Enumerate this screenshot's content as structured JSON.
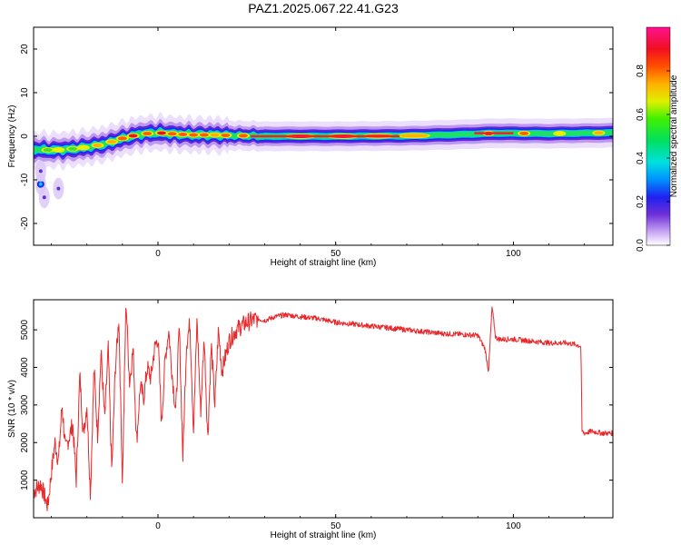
{
  "figure_title": "PAZ1.2025.067.22.41.G23",
  "chart_data": [
    {
      "type": "heatmap",
      "title": "PAZ1.2025.067.22.41.G23",
      "xlabel": "Height of straight line (km)",
      "ylabel": "Frequency (Hz)",
      "xlim": [
        -35,
        128
      ],
      "ylim": [
        -25,
        25
      ],
      "x_ticks": [
        0,
        50,
        100
      ],
      "y_ticks": [
        -20,
        -10,
        0,
        10,
        20
      ],
      "colorbar": {
        "label": "Normalized spectral amplitude",
        "range": [
          0,
          1
        ],
        "ticks": [
          0.0,
          0.2,
          0.4,
          0.6,
          0.8
        ]
      },
      "ridge": [
        {
          "x": -35,
          "y": -3.0
        },
        {
          "x": -30,
          "y": -3.2
        },
        {
          "x": -25,
          "y": -3.0
        },
        {
          "x": -20,
          "y": -2.5
        },
        {
          "x": -15,
          "y": -1.8
        },
        {
          "x": -10,
          "y": -0.5
        },
        {
          "x": -5,
          "y": 0.5
        },
        {
          "x": 0,
          "y": 0.8
        },
        {
          "x": 5,
          "y": 0.5
        },
        {
          "x": 10,
          "y": 0.3
        },
        {
          "x": 15,
          "y": 0.3
        },
        {
          "x": 20,
          "y": 0.2
        },
        {
          "x": 30,
          "y": 0.0
        },
        {
          "x": 50,
          "y": 0.0
        },
        {
          "x": 70,
          "y": 0.1
        },
        {
          "x": 85,
          "y": 0.4
        },
        {
          "x": 95,
          "y": 0.7
        },
        {
          "x": 110,
          "y": 0.6
        },
        {
          "x": 128,
          "y": 0.8
        }
      ],
      "outliers": [
        {
          "x": -33,
          "y": -11,
          "amp": 0.3
        },
        {
          "x": -32,
          "y": -14,
          "amp": 0.15
        },
        {
          "x": -28,
          "y": -12,
          "amp": 0.1
        },
        {
          "x": -33,
          "y": -8,
          "amp": 0.1
        }
      ]
    },
    {
      "type": "line",
      "xlabel": "Height of straight line (km)",
      "ylabel": "SNR (10 * v/v)",
      "xlim": [
        -35,
        128
      ],
      "ylim": [
        0,
        5800
      ],
      "x_ticks": [
        0,
        50,
        100
      ],
      "y_ticks": [
        1000,
        2000,
        3000,
        4000,
        5000
      ],
      "color": "#e8282a",
      "x": [
        -35,
        -33,
        -31,
        -30,
        -29,
        -28,
        -27,
        -26,
        -24,
        -23,
        -22,
        -21,
        -20,
        -19,
        -18,
        -17,
        -16,
        -15,
        -14,
        -13,
        -12,
        -11,
        -10,
        -9,
        -8,
        -7,
        -6,
        -5,
        -4,
        -3,
        -2,
        -1,
        0,
        1,
        2,
        3,
        4,
        5,
        6,
        7,
        8,
        9,
        10,
        11,
        12,
        13,
        14,
        15,
        16,
        17,
        18,
        20,
        22,
        25,
        28,
        30,
        33,
        36,
        40,
        45,
        50,
        55,
        60,
        65,
        70,
        75,
        80,
        85,
        90,
        92,
        93,
        94,
        95,
        96,
        100,
        105,
        110,
        115,
        118,
        119,
        119.3,
        120,
        122,
        125,
        128
      ],
      "y": [
        700,
        900,
        300,
        1200,
        2000,
        1500,
        3000,
        1800,
        2500,
        1000,
        3800,
        2200,
        3000,
        600,
        4000,
        2200,
        4400,
        2600,
        4500,
        1200,
        4000,
        5300,
        900,
        5800,
        3600,
        4500,
        2000,
        3500,
        3200,
        4000,
        3700,
        4500,
        4800,
        2500,
        4200,
        5000,
        3800,
        2800,
        5100,
        1600,
        4600,
        5200,
        2300,
        5300,
        2800,
        4800,
        2100,
        4600,
        3000,
        5000,
        3900,
        4700,
        5000,
        5200,
        5300,
        5250,
        5350,
        5400,
        5350,
        5300,
        5200,
        5150,
        5100,
        5050,
        5000,
        4950,
        4900,
        4880,
        4850,
        4500,
        3900,
        5600,
        4800,
        4750,
        4750,
        4700,
        4650,
        4650,
        4600,
        4550,
        2300,
        2250,
        2300,
        2250,
        2250
      ]
    }
  ]
}
